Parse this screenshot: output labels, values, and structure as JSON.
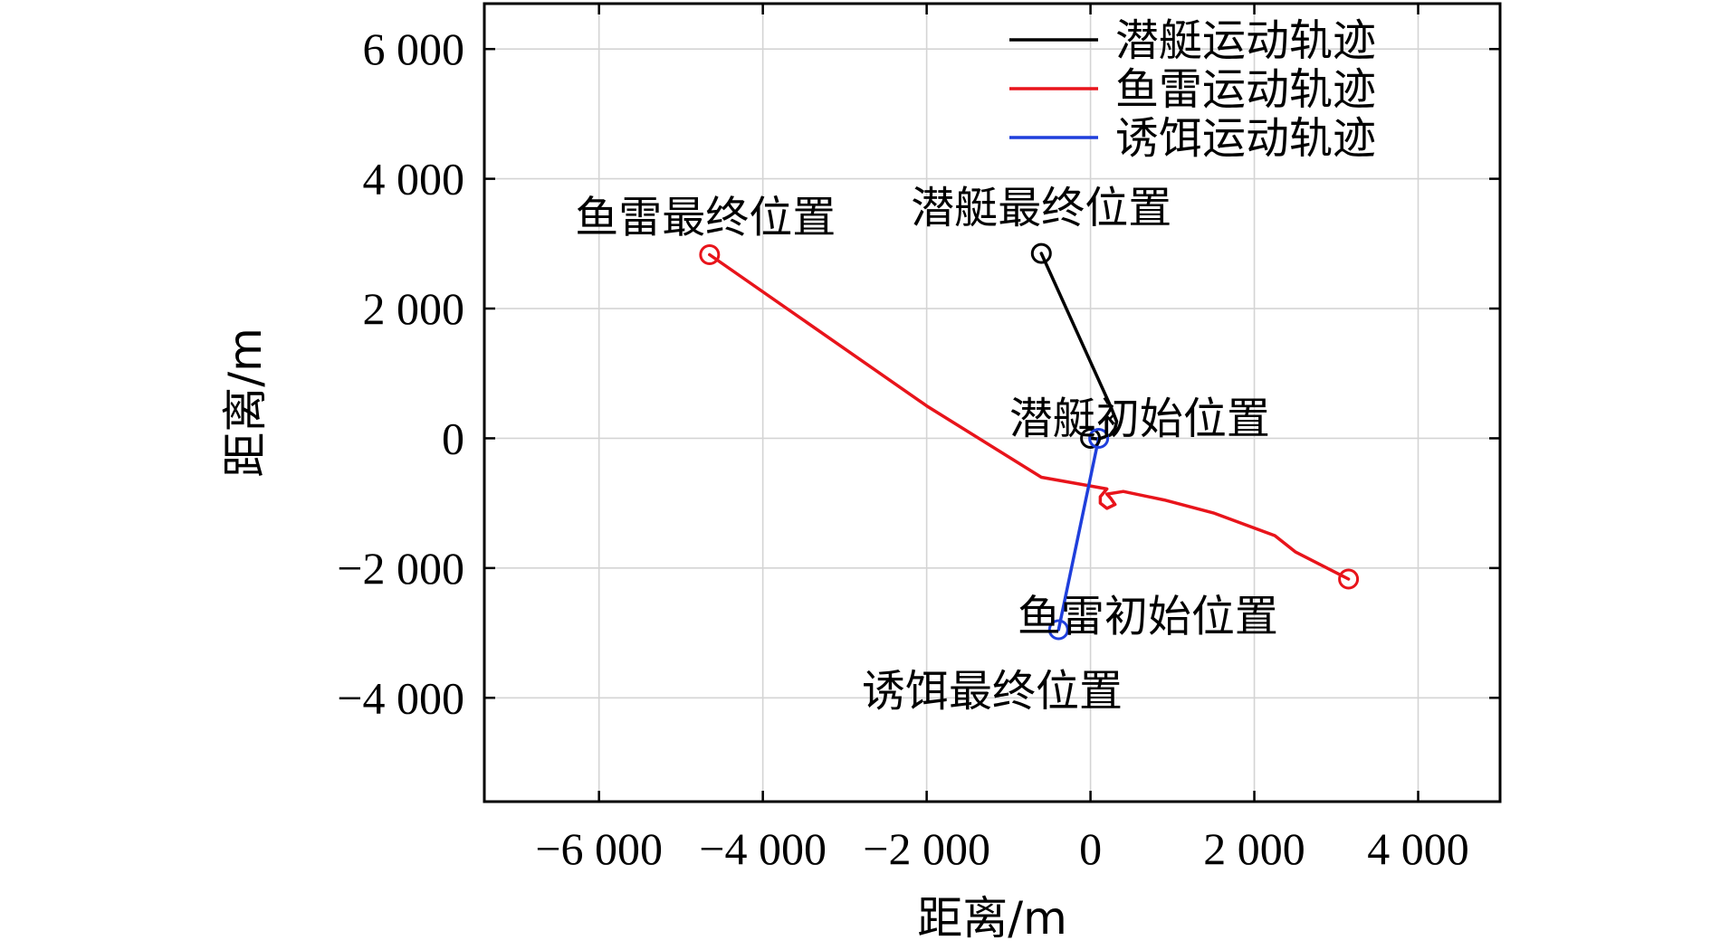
{
  "chart_data": {
    "type": "line",
    "xlabel": "距离/m",
    "ylabel": "距离/m",
    "xlim": [
      -7400,
      5000
    ],
    "ylim": [
      -5600,
      6700
    ],
    "xticks": [
      -6000,
      -4000,
      -2000,
      0,
      2000,
      4000
    ],
    "yticks": [
      -4000,
      -2000,
      0,
      2000,
      4000,
      6000
    ],
    "xtick_labels": [
      "−6 000",
      "−4 000",
      "−2 000",
      "0",
      "2 000",
      "4 000"
    ],
    "ytick_labels": [
      "−4 000",
      "−2 000",
      "0",
      "2 000",
      "4 000",
      "6 000"
    ],
    "grid": true,
    "legend_position": "top-right",
    "series": [
      {
        "name": "潜艇运动轨迹",
        "color": "#000000",
        "x": [
          0,
          100,
          240,
          300,
          320,
          250,
          -600
        ],
        "y": [
          0,
          -10,
          50,
          150,
          260,
          480,
          2850
        ],
        "start_marker": [
          0,
          0
        ],
        "end_marker": [
          -600,
          2850
        ]
      },
      {
        "name": "鱼雷运动轨迹",
        "color": "#e8141b",
        "x": [
          3150,
          2500,
          2250,
          1500,
          900,
          400,
          200,
          250,
          300,
          200,
          120,
          120,
          200,
          -600,
          -2000,
          -4650
        ],
        "y": [
          -2170,
          -1750,
          -1500,
          -1150,
          -950,
          -820,
          -860,
          -930,
          -1020,
          -1080,
          -1000,
          -900,
          -780,
          -600,
          500,
          2830
        ],
        "start_marker": [
          3150,
          -2170
        ],
        "end_marker": [
          -4650,
          2830
        ]
      },
      {
        "name": "诱饵运动轨迹",
        "color": "#1f3fdc",
        "x": [
          100,
          -390
        ],
        "y": [
          0,
          -2950
        ],
        "start_marker": [
          100,
          0
        ],
        "end_marker": [
          -390,
          -2950
        ]
      }
    ],
    "annotations": [
      {
        "text": "鱼雷最终位置",
        "x": -4700,
        "y": 3400
      },
      {
        "text": "潜艇最终位置",
        "x": -600,
        "y": 3550
      },
      {
        "text": "潜艇初始位置",
        "x": 600,
        "y": 300
      },
      {
        "text": "鱼雷初始位置",
        "x": 700,
        "y": -2750
      },
      {
        "text": "诱饵最终位置",
        "x": -1200,
        "y": -3900
      }
    ]
  }
}
